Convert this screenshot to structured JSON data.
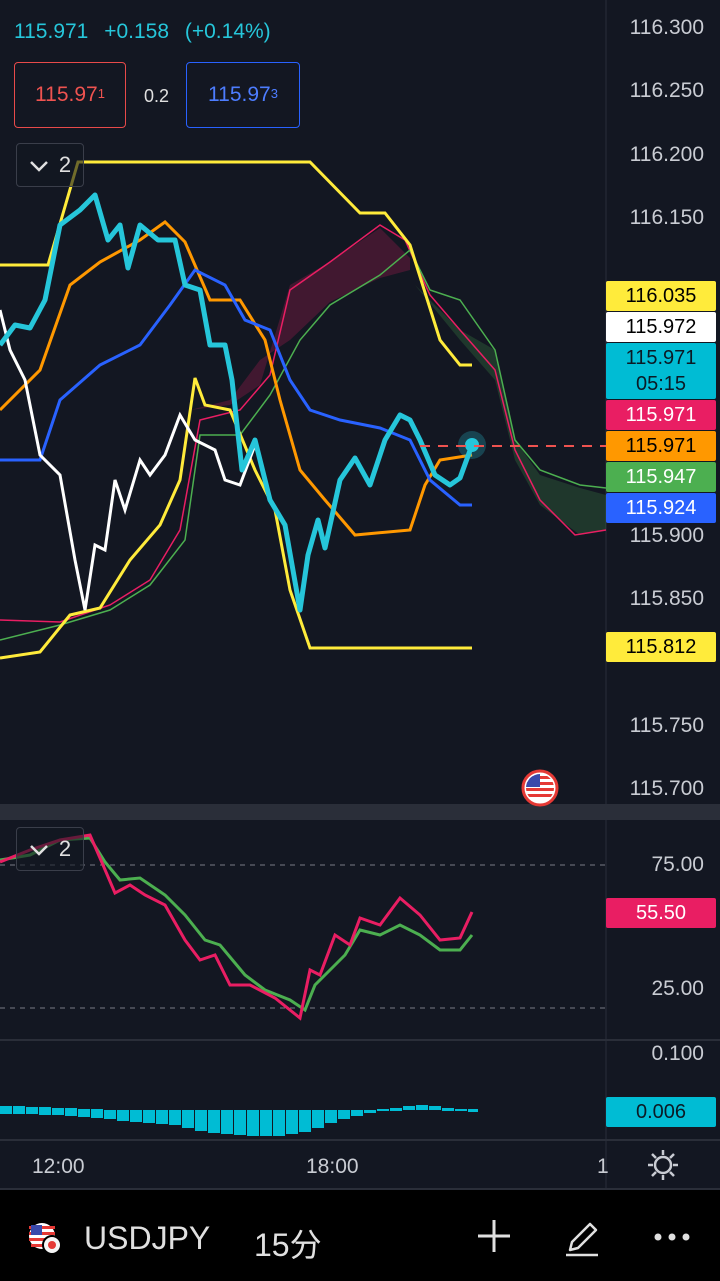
{
  "header": {
    "last_price": "115.971",
    "change": "+0.158",
    "change_pct": "(+0.14%)"
  },
  "quote": {
    "bid_main": "115.97",
    "bid_sup": "1",
    "spread": "0.2",
    "ask_main": "115.97",
    "ask_sup": "3"
  },
  "main_pane": {
    "indicator_count": "2",
    "price_axis": [
      "116.300",
      "116.250",
      "116.200",
      "116.150",
      "115.900",
      "115.850",
      "115.750",
      "115.700"
    ],
    "tags": [
      {
        "value": "116.035",
        "bg": "#ffeb3b",
        "fg": "#000000"
      },
      {
        "value": "115.972",
        "bg": "#ffffff",
        "fg": "#000000"
      },
      {
        "value": "115.971",
        "sub": "05:15",
        "bg": "#00bcd4",
        "fg": "#0b1a25"
      },
      {
        "value": "115.971",
        "bg": "#e91e63",
        "fg": "#ffffff"
      },
      {
        "value": "115.971",
        "bg": "#ff9800",
        "fg": "#000000"
      },
      {
        "value": "115.947",
        "bg": "#4caf50",
        "fg": "#ffffff"
      },
      {
        "value": "115.924",
        "bg": "#2962ff",
        "fg": "#ffffff"
      },
      {
        "value": "115.812",
        "bg": "#ffeb3b",
        "fg": "#000000"
      }
    ]
  },
  "rsi_pane": {
    "indicator_count": "2",
    "axis": [
      "75.00",
      "25.00"
    ],
    "tag": {
      "value": "55.50",
      "bg": "#e91e63",
      "fg": "#ffffff"
    }
  },
  "macd_pane": {
    "axis": [
      "0.100"
    ],
    "tag": {
      "value": "0.006",
      "bg": "#00bcd4",
      "fg": "#0b1a25"
    }
  },
  "time_axis": [
    "12:00",
    "18:00",
    "1"
  ],
  "bottom_bar": {
    "symbol": "USDJPY",
    "interval": "15分"
  },
  "colors": {
    "background": "#131722",
    "cyan": "#26c6da",
    "yellow": "#ffeb3b",
    "orange": "#ff9800",
    "blue": "#2962ff",
    "magenta": "#e91e63",
    "green": "#4caf50",
    "white": "#ffffff"
  }
}
